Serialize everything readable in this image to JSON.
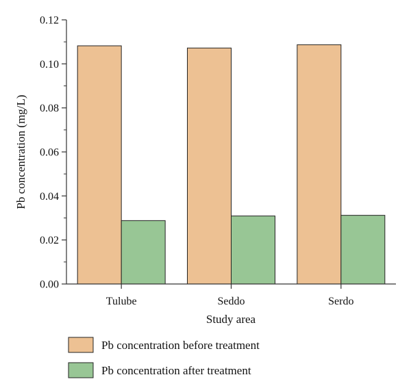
{
  "chart_data": {
    "type": "bar",
    "title": "",
    "xlabel": "Study area",
    "ylabel": "Pb concentration (mg/L)",
    "categories": [
      "Tulube",
      "Seddo",
      "Serdo"
    ],
    "series": [
      {
        "name": "Pb concentration before treatment",
        "values": [
          0.1082,
          0.1072,
          0.1087
        ],
        "color": "#EDC193"
      },
      {
        "name": "Pb concentration after treatment",
        "values": [
          0.0288,
          0.0309,
          0.0312
        ],
        "color": "#98C695"
      }
    ],
    "ylim": [
      0,
      0.12
    ],
    "yticks": [
      "0.00",
      "0.02",
      "0.04",
      "0.06",
      "0.08",
      "0.10",
      "0.12"
    ],
    "grid": false,
    "legend_position": "bottom"
  }
}
